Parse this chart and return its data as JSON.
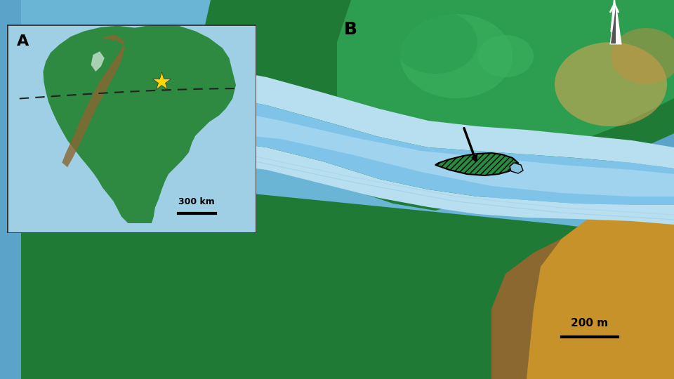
{
  "title_A": "A",
  "title_B": "B",
  "bg_color": "#5ba3c9",
  "inset_bg": "#a8d0e6",
  "scale_bar_300km": "300 km",
  "scale_bar_200m": "200 m",
  "star_color": "#FFD700",
  "arrow_color": "#000000",
  "hatch_color": "#1a6e2e",
  "river_color": "#a8cfe0",
  "land_dark": "#1a6e2e",
  "land_mid": "#4a9e4a",
  "land_light": "#8bc34a",
  "elev_high": "#c8a060",
  "north_arrow_color": "#ffffff"
}
